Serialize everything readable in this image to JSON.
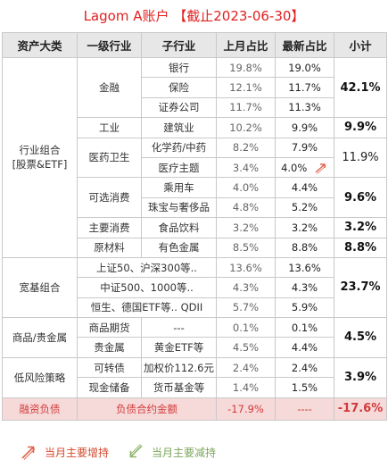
{
  "header": {
    "title": "Lagom A账户 【截止2023-06-30】"
  },
  "columns": [
    "资产大类",
    "一级行业",
    "子行业",
    "上月占比",
    "最新占比",
    "小计"
  ],
  "groups": {
    "industry": {
      "label_line1": "行业组合",
      "label_line2": "[股票&ETF]"
    },
    "broad": {
      "label": "宽基组合"
    },
    "commodity": {
      "label": "商品/贵金属"
    },
    "lowrisk": {
      "label": "低风险策略"
    }
  },
  "rows": [
    {
      "lvl1": "金融",
      "sub": "银行",
      "prev": "19.8%",
      "latest": "19.0%"
    },
    {
      "sub": "保险",
      "prev": "12.1%",
      "latest": "11.7%"
    },
    {
      "sub": "证券公司",
      "prev": "11.7%",
      "latest": "11.3%"
    },
    {
      "lvl1": "工业",
      "sub": "建筑业",
      "prev": "10.2%",
      "latest": "9.9%"
    },
    {
      "lvl1": "医药卫生",
      "sub": "化学药/中药",
      "prev": "8.2%",
      "latest": "7.9%"
    },
    {
      "sub": "医疗主题",
      "prev": "3.4%",
      "latest": "4.0%"
    },
    {
      "lvl1": "可选消费",
      "sub": "乘用车",
      "prev": "4.0%",
      "latest": "4.4%"
    },
    {
      "sub": "珠宝与奢侈品",
      "prev": "4.8%",
      "latest": "5.2%"
    },
    {
      "lvl1": "主要消费",
      "sub": "食品饮料",
      "prev": "3.2%",
      "latest": "3.2%"
    },
    {
      "lvl1": "原材料",
      "sub": "有色金属",
      "prev": "8.5%",
      "latest": "8.8%"
    },
    {
      "lvl1": "上证50、沪深300等..",
      "prev": "13.6%",
      "latest": "13.6%"
    },
    {
      "lvl1": "中证500、1000等..",
      "prev": "4.3%",
      "latest": "4.3%"
    },
    {
      "lvl1": "恒生、德国ETF等.. QDII",
      "prev": "5.7%",
      "latest": "5.9%"
    },
    {
      "lvl1": "商品期货",
      "sub": "---",
      "prev": "0.1%",
      "latest": "0.1%"
    },
    {
      "lvl1": "贵金属",
      "sub": "黄金ETF等",
      "prev": "4.5%",
      "latest": "4.4%"
    },
    {
      "lvl1": "可转债",
      "sub": "加权价112.6元",
      "prev": "2.4%",
      "latest": "2.4%"
    },
    {
      "lvl1": "现金储备",
      "sub": "货币基金等",
      "prev": "1.4%",
      "latest": "1.5%"
    }
  ],
  "subtotals": {
    "finance": "42.1%",
    "industrial": "9.9%",
    "health": "11.9%",
    "discretionary": "9.6%",
    "staples": "3.2%",
    "materials": "8.8%",
    "broad": "23.7%",
    "commodity": "4.5%",
    "lowrisk": "3.9%"
  },
  "liability": {
    "category": "融资负债",
    "label": "负债合约金额",
    "prev": "-17.9%",
    "latest": "----",
    "subtotal": "-17.6%"
  },
  "legend": {
    "increase": "当月主要增持",
    "decrease": "当月主要减持"
  },
  "colors": {
    "title": "#e02020",
    "increase_arrow": "#e0614a",
    "decrease_arrow": "#8fb56a",
    "liability_bg": "#f6d9d9",
    "header_bg": "#e7e7e7"
  },
  "icons": [
    "arrow-up-right-icon",
    "arrow-down-left-icon"
  ]
}
